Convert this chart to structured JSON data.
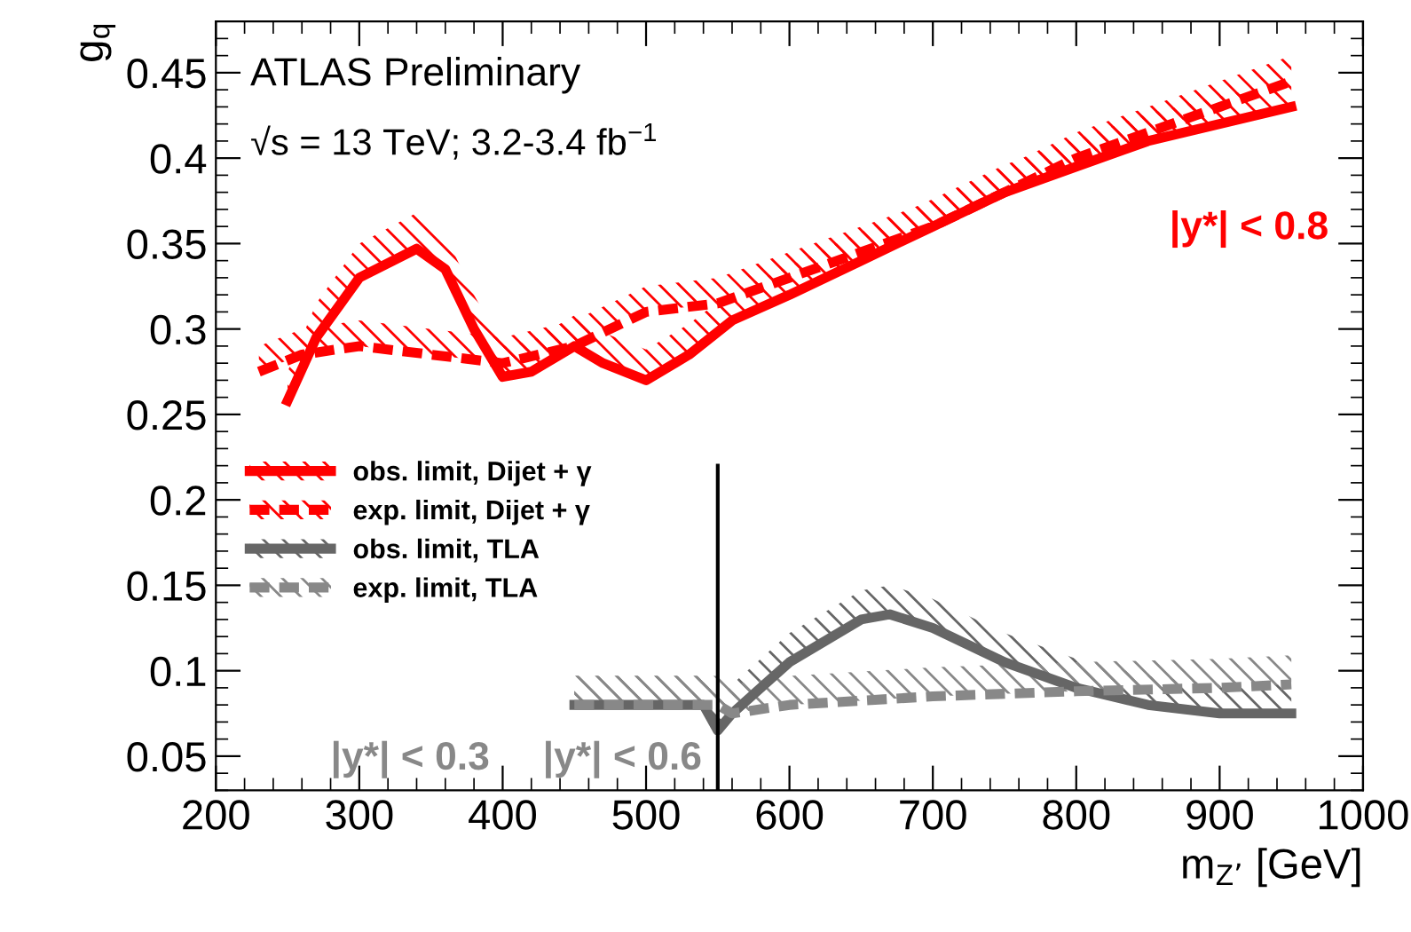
{
  "chart_data": {
    "type": "line",
    "xlabel": "m$_{Z’}$ [GeV]",
    "ylabel": "g$_{q}$",
    "xlim": [
      200,
      1000
    ],
    "ylim": [
      0.03,
      0.48
    ],
    "xticks": [
      200,
      300,
      400,
      500,
      600,
      700,
      800,
      900,
      1000
    ],
    "yticks": [
      0.05,
      0.1,
      0.15,
      0.2,
      0.25,
      0.3,
      0.35,
      0.4,
      0.45
    ],
    "grid": false,
    "legend": "left",
    "marker": "none",
    "annotations": [
      "ATLAS Preliminary",
      "√s = 13 TeV; 3.2-3.4 fb$^{−1}$",
      "|y*| < 0.8",
      "|y*| < 0.3",
      "|y*| < 0.6"
    ],
    "series": [
      {
        "name": "obs. limit, Dijet + γ",
        "color": "#ff0000",
        "line_style": "solid",
        "x": [
          250,
          270,
          300,
          340,
          360,
          380,
          400,
          420,
          450,
          470,
          500,
          530,
          560,
          600,
          650,
          700,
          750,
          800,
          850,
          900,
          950
        ],
        "values": [
          0.258,
          0.295,
          0.33,
          0.347,
          0.335,
          0.3,
          0.272,
          0.275,
          0.29,
          0.28,
          0.27,
          0.285,
          0.305,
          0.32,
          0.34,
          0.36,
          0.38,
          0.395,
          0.41,
          0.42,
          0.43
        ],
        "lower": [
          0.258,
          0.295,
          0.33,
          0.347,
          0.335,
          0.3,
          0.272,
          0.275,
          0.29,
          0.28,
          0.27,
          0.285,
          0.305,
          0.32,
          0.34,
          0.36,
          0.38,
          0.395,
          0.41,
          0.42,
          0.43
        ],
        "upper": [
          0.275,
          0.315,
          0.35,
          0.368,
          0.355,
          0.32,
          0.29,
          0.293,
          0.308,
          0.298,
          0.288,
          0.303,
          0.322,
          0.337,
          0.357,
          0.376,
          0.396,
          0.411,
          0.426,
          0.436,
          0.446
        ]
      },
      {
        "name": "exp. limit, Dijet + γ",
        "color": "#ff0000",
        "line_style": "dashed",
        "x": [
          230,
          260,
          300,
          350,
          400,
          450,
          500,
          550,
          600,
          650,
          700,
          750,
          800,
          850,
          900,
          950
        ],
        "values": [
          0.275,
          0.285,
          0.29,
          0.285,
          0.28,
          0.29,
          0.31,
          0.315,
          0.33,
          0.345,
          0.36,
          0.38,
          0.4,
          0.415,
          0.43,
          0.445
        ],
        "lower": [
          0.275,
          0.285,
          0.29,
          0.285,
          0.28,
          0.29,
          0.31,
          0.315,
          0.33,
          0.345,
          0.36,
          0.38,
          0.4,
          0.415,
          0.43,
          0.445
        ],
        "upper": [
          0.29,
          0.3,
          0.305,
          0.3,
          0.295,
          0.305,
          0.325,
          0.33,
          0.345,
          0.36,
          0.375,
          0.395,
          0.415,
          0.43,
          0.445,
          0.46
        ]
      },
      {
        "name": "obs. limit, TLA",
        "color": "#666666",
        "line_style": "solid",
        "x": [
          450,
          500,
          540,
          550,
          560,
          600,
          650,
          670,
          700,
          750,
          800,
          850,
          900,
          950
        ],
        "values": [
          0.08,
          0.08,
          0.08,
          0.065,
          0.075,
          0.105,
          0.13,
          0.133,
          0.125,
          0.105,
          0.09,
          0.08,
          0.075,
          0.075
        ],
        "lower": [
          0.08,
          0.08,
          0.08,
          0.065,
          0.075,
          0.105,
          0.13,
          0.133,
          0.125,
          0.105,
          0.09,
          0.08,
          0.075,
          0.075
        ],
        "upper": [
          0.097,
          0.097,
          0.097,
          0.082,
          0.092,
          0.122,
          0.147,
          0.15,
          0.142,
          0.122,
          0.107,
          0.097,
          0.092,
          0.092
        ]
      },
      {
        "name": "exp. limit, TLA",
        "color": "#888888",
        "line_style": "dashed",
        "x": [
          450,
          550,
          560,
          600,
          700,
          800,
          900,
          950
        ],
        "values": [
          0.08,
          0.08,
          0.075,
          0.08,
          0.085,
          0.088,
          0.09,
          0.092
        ],
        "lower": [
          0.08,
          0.08,
          0.075,
          0.08,
          0.085,
          0.088,
          0.09,
          0.092
        ],
        "upper": [
          0.097,
          0.097,
          0.092,
          0.097,
          0.102,
          0.105,
          0.107,
          0.109
        ]
      },
      {
        "color": "#000000",
        "line_style": "solid",
        "x": [
          550,
          550
        ],
        "values": [
          0.03,
          0.22
        ]
      }
    ]
  }
}
